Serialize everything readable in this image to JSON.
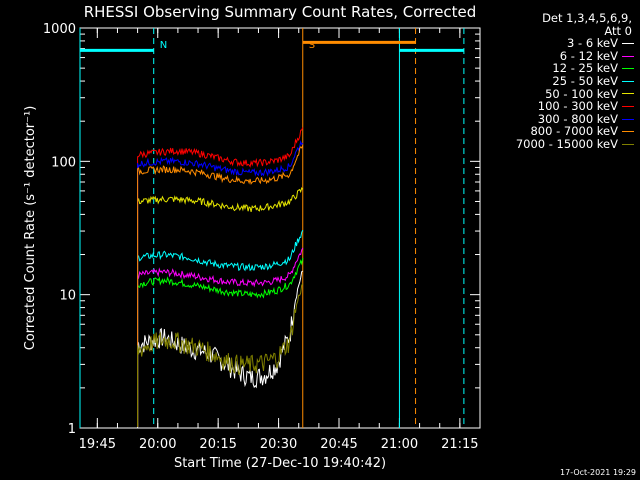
{
  "chart_data": {
    "type": "line",
    "title": "RHESSI Observing Summary Count Rates, Corrected",
    "xlabel": "Start Time (27-Dec-10 19:40:42)",
    "ylabel": "Corrected Count Rate (s⁻¹ detector⁻¹)",
    "yscale": "log",
    "ylim": [
      1,
      1000
    ],
    "xlim": [
      "19:40:42",
      "21:20:00"
    ],
    "x_ticks": [
      "19:45",
      "20:00",
      "20:15",
      "20:30",
      "20:45",
      "21:00",
      "21:15"
    ],
    "y_ticks": [
      "1",
      "10",
      "100",
      "1000"
    ],
    "legend_header": [
      "Det 1,3,4,5,6,9,",
      "Att 0"
    ],
    "legend_position": "right",
    "series": [
      {
        "name": "3 - 6 keV",
        "color": "#ffffff",
        "start": "19:55",
        "end": "20:36",
        "values": [
          4.2,
          4.5,
          4.8,
          4.4,
          4.0,
          3.8,
          3.5,
          3.0,
          2.6,
          2.4,
          2.5,
          3.0,
          5.0,
          15
        ]
      },
      {
        "name": "6 - 12 keV",
        "color": "#ff00ff",
        "start": "19:55",
        "end": "20:36",
        "values": [
          14,
          14.5,
          14.8,
          14.5,
          14,
          13.5,
          13,
          12.5,
          12.3,
          12.2,
          12.3,
          12.8,
          14,
          22
        ]
      },
      {
        "name": "12 - 25 keV",
        "color": "#00ff00",
        "start": "19:55",
        "end": "20:36",
        "values": [
          12,
          12.5,
          12.8,
          12.5,
          12,
          11.5,
          11,
          10.5,
          10.2,
          10.0,
          10.2,
          10.8,
          12,
          18
        ]
      },
      {
        "name": "25 - 50 keV",
        "color": "#00ffff",
        "start": "19:55",
        "end": "20:36",
        "values": [
          19,
          19.5,
          20,
          19.5,
          19,
          18,
          17,
          16.5,
          16.2,
          16,
          16.3,
          17,
          18.5,
          30
        ]
      },
      {
        "name": "50 - 100 keV",
        "color": "#e5e500",
        "start": "19:55",
        "end": "20:36",
        "values": [
          50,
          51,
          52,
          52,
          51,
          50,
          48,
          46,
          45,
          44,
          45,
          47,
          50,
          62
        ]
      },
      {
        "name": "100 - 300 keV",
        "color": "#ff0000",
        "start": "19:55",
        "end": "20:36",
        "values": [
          112,
          115,
          118,
          120,
          118,
          114,
          108,
          102,
          98,
          97,
          98,
          102,
          110,
          175
        ]
      },
      {
        "name": "300 - 800 keV",
        "color": "#0000ff",
        "start": "19:55",
        "end": "20:36",
        "values": [
          96,
          98,
          100,
          100,
          98,
          95,
          90,
          86,
          83,
          82,
          83,
          86,
          92,
          145
        ]
      },
      {
        "name": "800 - 7000 keV",
        "color": "#ff8c00",
        "start": "19:55",
        "end": "20:36",
        "values": [
          84,
          86,
          87,
          87,
          85,
          82,
          78,
          74,
          72,
          71,
          72,
          75,
          80,
          130
        ]
      },
      {
        "name": "7000 - 15000 keV",
        "color": "#808000",
        "start": "19:55",
        "end": "20:36",
        "values": [
          3.8,
          4.3,
          4.6,
          4.5,
          4.2,
          4.0,
          3.6,
          3.2,
          3.0,
          3.0,
          3.1,
          3.4,
          4.5,
          12
        ]
      }
    ],
    "annotations": [
      {
        "label": "N",
        "color": "#00ffff",
        "time": "19:59"
      },
      {
        "label": "S",
        "color": "#ff8c00",
        "time": "20:36"
      }
    ],
    "night_bars": [
      {
        "color": "#00ffff",
        "from": "19:40:42",
        "to": "19:59",
        "value": 680
      },
      {
        "color": "#ff8c00",
        "from": "20:36",
        "to": "21:04",
        "value": 780
      },
      {
        "color": "#00ffff",
        "from": "21:00",
        "to": "21:16",
        "value": 680
      }
    ],
    "vlines": [
      {
        "color": "#00ffff",
        "time": "19:40:42",
        "style": "solid"
      },
      {
        "color": "#00ffff",
        "time": "19:59",
        "style": "dashed"
      },
      {
        "color": "#ff8c00",
        "time": "20:36",
        "style": "solid"
      },
      {
        "color": "#00ffff",
        "time": "21:00",
        "style": "solid"
      },
      {
        "color": "#ff8c00",
        "time": "21:04",
        "style": "dashed"
      },
      {
        "color": "#00ffff",
        "time": "21:16",
        "style": "dashed"
      }
    ],
    "timestamp": "17-Oct-2021 19:29"
  }
}
